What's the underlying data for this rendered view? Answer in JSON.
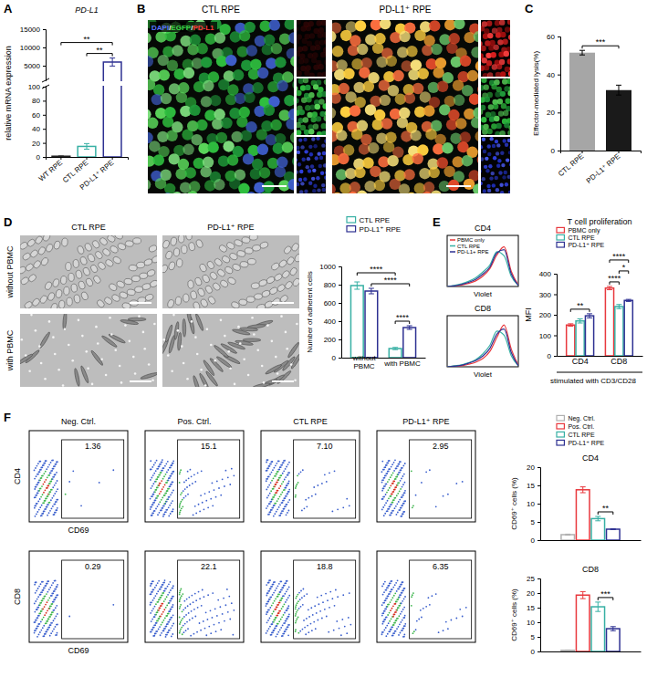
{
  "images": [
    {
      "panel_label": "B",
      "titles": [
        "CTL RPE",
        "PD-L1⁺ RPE"
      ],
      "channel_label": "DAPI/EGFP/PD-L1",
      "colors": [
        "#5a74ff",
        "#3ddc4a",
        "#ff3b3b"
      ]
    },
    {
      "panel_label": "D",
      "titles": [
        "CTL RPE",
        "PD-L1⁺ RPE"
      ],
      "rows": [
        "without PBMC",
        "with PBMC"
      ]
    }
  ],
  "chart_data": [
    {
      "panel_label": "A",
      "type": "bar",
      "title": "PD-L1",
      "y_label": "relative mRNA expression",
      "categories": [
        "WT RPE",
        "CTL RPE",
        "PD-L1⁺ RPE"
      ],
      "values": [
        1,
        15,
        6000
      ],
      "errors": [
        0.3,
        4,
        1100
      ],
      "colors": [
        "#222222",
        "#37b0a4",
        "#2e3192"
      ],
      "line_style": "outline",
      "ylim": [
        0,
        15000
      ],
      "y_break": [
        100,
        1000
      ],
      "yticks": [
        0,
        20,
        40,
        60,
        80,
        100,
        5000,
        10000,
        15000
      ],
      "significance": [
        {
          "from": 1,
          "to": 2,
          "label": "**"
        },
        {
          "from": 0,
          "to": 2,
          "label": "**"
        }
      ]
    },
    {
      "panel_label": "C",
      "type": "bar",
      "y_label": "Effector-mediated lysis(%)",
      "categories": [
        "CTL RPE",
        "PD-L1⁺ RPE"
      ],
      "values": [
        51.5,
        31.8
      ],
      "errors": [
        1.2,
        2.6
      ],
      "colors": [
        "#a6a6a6",
        "#1a1a1a"
      ],
      "ylim": [
        0,
        60
      ],
      "yticks": [
        0,
        20,
        40,
        60
      ],
      "significance": [
        {
          "from": 0,
          "to": 1,
          "label": "***"
        }
      ]
    },
    {
      "type": "bar",
      "line_style": "outline",
      "y_label": "Number of adherent cells",
      "categories": [
        "without PBMC",
        "with PBMC"
      ],
      "series": [
        {
          "name": "CTL RPE",
          "color": "#37b0a4",
          "values": [
            790,
            100
          ],
          "errors": [
            40,
            12
          ]
        },
        {
          "name": "PD-L1⁺ RPE",
          "color": "#2e3192",
          "values": [
            730,
            330
          ],
          "errors": [
            30,
            20
          ]
        }
      ],
      "ylim": [
        0,
        1000
      ],
      "yticks": [
        0,
        200,
        400,
        600,
        800,
        1000
      ],
      "legend": "top",
      "significance": [
        {
          "from": [
            1,
            0
          ],
          "to": [
            1,
            1
          ],
          "label": "****"
        },
        {
          "from": [
            0,
            1
          ],
          "to": [
            1,
            1
          ],
          "label": "****"
        },
        {
          "from": [
            0,
            0
          ],
          "to": [
            1,
            0
          ],
          "label": "****"
        }
      ]
    },
    {
      "panel_label": "E",
      "type": "line",
      "title": "CD4",
      "x_label": "Violet",
      "x": [
        0,
        1,
        2,
        3,
        4,
        5,
        6,
        7,
        8,
        9,
        10
      ],
      "xlim": [
        0,
        10
      ],
      "ylim": [
        0,
        100
      ],
      "tick_labels": false,
      "legend": "top-left",
      "series": [
        {
          "name": "PBMC only",
          "color": "#e8383d",
          "values": [
            0,
            1,
            3,
            6,
            11,
            20,
            35,
            62,
            78,
            30,
            3
          ]
        },
        {
          "name": "CTL RPE",
          "color": "#37b0a4",
          "values": [
            0,
            2,
            5,
            10,
            17,
            28,
            42,
            68,
            60,
            20,
            2
          ]
        },
        {
          "name": "PD-L1+ RPE",
          "color": "#2e3192",
          "values": [
            0,
            1,
            4,
            8,
            14,
            24,
            38,
            66,
            72,
            25,
            2
          ]
        }
      ]
    },
    {
      "type": "line",
      "title": "CD8",
      "x_label": "Violet",
      "x": [
        0,
        1,
        2,
        3,
        4,
        5,
        6,
        7,
        8,
        9,
        10
      ],
      "xlim": [
        0,
        10
      ],
      "ylim": [
        0,
        100
      ],
      "tick_labels": false,
      "series": [
        {
          "color": "#e8383d",
          "values": [
            0,
            1,
            2,
            5,
            9,
            16,
            30,
            58,
            82,
            35,
            3
          ]
        },
        {
          "color": "#37b0a4",
          "values": [
            0,
            2,
            4,
            8,
            14,
            25,
            42,
            70,
            62,
            22,
            2
          ]
        },
        {
          "color": "#2e3192",
          "values": [
            0,
            1,
            3,
            7,
            12,
            21,
            36,
            64,
            74,
            28,
            2
          ]
        }
      ]
    },
    {
      "type": "bar",
      "line_style": "outline",
      "title": "T cell proliferation",
      "y_label": "MFI",
      "x_label": "stimulated with CD3/CD28",
      "categories": [
        "CD4",
        "CD8"
      ],
      "series": [
        {
          "name": "PBMC only",
          "color": "#e8383d",
          "values": [
            150,
            330
          ],
          "errors": [
            6,
            8
          ]
        },
        {
          "name": "CTL RPE",
          "color": "#37b0a4",
          "values": [
            170,
            240
          ],
          "errors": [
            10,
            10
          ]
        },
        {
          "name": "PD-L1⁺ RPE",
          "color": "#2e3192",
          "values": [
            195,
            270
          ],
          "errors": [
            10,
            5
          ]
        }
      ],
      "ylim": [
        0,
        400
      ],
      "yticks": [
        0,
        100,
        200,
        300,
        400
      ],
      "legend": "top-left",
      "significance": [
        {
          "from": [
            0,
            0
          ],
          "to": [
            0,
            2
          ],
          "label": "**"
        },
        {
          "from": [
            1,
            0
          ],
          "to": [
            1,
            1
          ],
          "label": "****"
        },
        {
          "from": [
            1,
            1
          ],
          "to": [
            1,
            2
          ],
          "label": "*"
        },
        {
          "from": [
            1,
            0
          ],
          "to": [
            1,
            2
          ],
          "label": "****"
        }
      ]
    },
    {
      "panel_label": "F",
      "type": "flow",
      "columns": [
        "Neg. Ctrl.",
        "Pos. Ctrl.",
        "CTL RPE",
        "PD-L1⁺ RPE"
      ],
      "rows": [
        {
          "y_label": "CD4",
          "x_label": "CD69",
          "values": [
            1.36,
            15.1,
            7.1,
            2.95
          ],
          "value_labels": [
            "1.36",
            "15.1",
            "7.10",
            "2.95"
          ]
        },
        {
          "y_label": "CD8",
          "x_label": "CD69",
          "values": [
            0.29,
            22.1,
            18.8,
            6.35
          ],
          "value_labels": [
            "0.29",
            "22.1",
            "18.8",
            "6.35"
          ]
        }
      ],
      "data_labels": true
    },
    {
      "type": "bar",
      "line_style": "outline",
      "title": "CD4",
      "y_label": "CD69⁺ cells (%)",
      "categories": [
        null
      ],
      "series": [
        {
          "name": "Neg. Ctrl.",
          "color": "#b0b0b0",
          "values": [
            1.5
          ],
          "errors": [
            0.15
          ]
        },
        {
          "name": "Pos. Ctrl.",
          "color": "#e8383d",
          "values": [
            13.8
          ],
          "errors": [
            0.8
          ]
        },
        {
          "name": "CTL RPE",
          "color": "#37b0a4",
          "values": [
            5.9
          ],
          "errors": [
            0.6
          ]
        },
        {
          "name": "PD-L1⁺ RPE",
          "color": "#2e3192",
          "values": [
            3.0
          ],
          "errors": [
            0.1
          ]
        }
      ],
      "ylim": [
        0,
        20
      ],
      "yticks": [
        0,
        5,
        10,
        15,
        20
      ],
      "legend": "top-right",
      "significance": [
        {
          "from": [
            0,
            2
          ],
          "to": [
            0,
            3
          ],
          "label": "**"
        }
      ]
    },
    {
      "type": "bar",
      "line_style": "outline",
      "title": "CD8",
      "y_label": "CD69⁺ cells (%)",
      "categories": [
        null
      ],
      "series": [
        {
          "color": "#b0b0b0",
          "values": [
            0.4
          ],
          "errors": [
            0.1
          ]
        },
        {
          "color": "#e8383d",
          "values": [
            19.3
          ],
          "errors": [
            1.2
          ]
        },
        {
          "color": "#37b0a4",
          "values": [
            15.3
          ],
          "errors": [
            1.6
          ]
        },
        {
          "color": "#2e3192",
          "values": [
            7.8
          ],
          "errors": [
            0.7
          ]
        }
      ],
      "ylim": [
        0,
        25
      ],
      "yticks": [
        0,
        5,
        10,
        15,
        20,
        25
      ],
      "significance": [
        {
          "from": [
            0,
            2
          ],
          "to": [
            0,
            3
          ],
          "label": "***"
        }
      ]
    }
  ]
}
